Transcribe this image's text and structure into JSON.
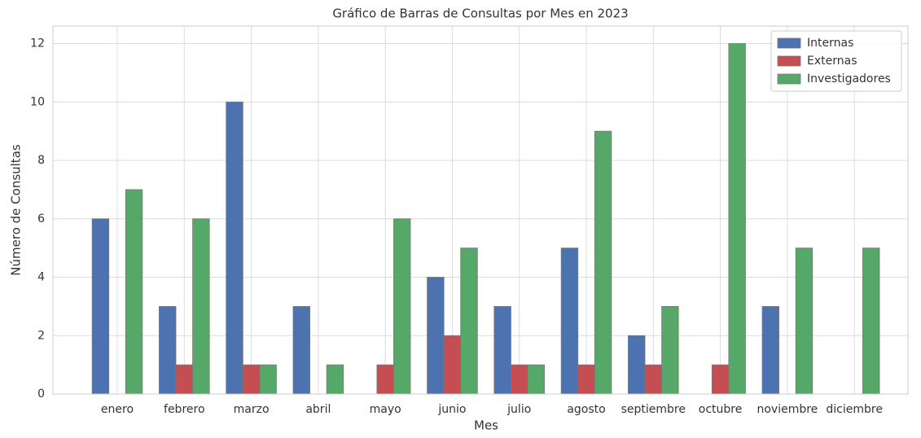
{
  "chart_data": {
    "type": "bar",
    "title": "Gráfico de Barras de Consultas por Mes en 2023",
    "xlabel": "Mes",
    "ylabel": "Número de Consultas",
    "categories": [
      "enero",
      "febrero",
      "marzo",
      "abril",
      "mayo",
      "junio",
      "julio",
      "agosto",
      "septiembre",
      "octubre",
      "noviembre",
      "diciembre"
    ],
    "series": [
      {
        "name": "Internas",
        "color": "#4c72b0",
        "values": [
          6,
          3,
          10,
          3,
          0,
          4,
          3,
          5,
          2,
          0,
          3,
          0
        ]
      },
      {
        "name": "Externas",
        "color": "#c44e52",
        "values": [
          0,
          1,
          1,
          0,
          1,
          2,
          1,
          1,
          1,
          1,
          0,
          0
        ]
      },
      {
        "name": "Investigadores",
        "color": "#55a868",
        "values": [
          7,
          6,
          1,
          1,
          6,
          5,
          1,
          9,
          3,
          12,
          5,
          5
        ]
      }
    ],
    "ylim": [
      0,
      12.6
    ],
    "yticks": [
      0,
      2,
      4,
      6,
      8,
      10,
      12
    ],
    "grid": true,
    "legend": "upper right"
  }
}
